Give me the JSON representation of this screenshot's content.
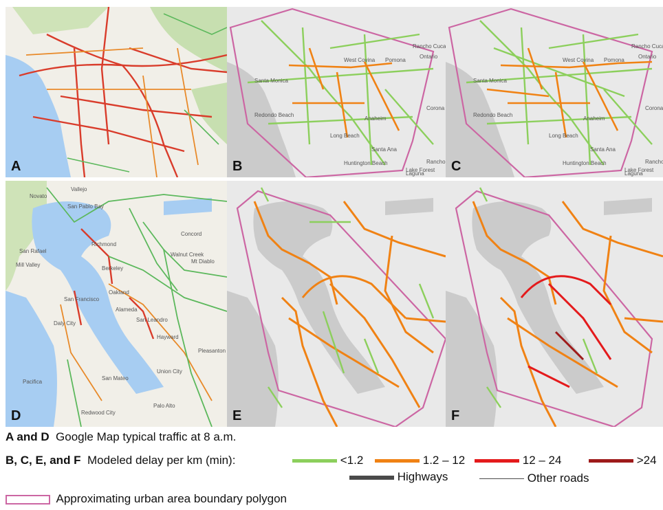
{
  "panels": {
    "A": {
      "label": "A"
    },
    "B": {
      "label": "B"
    },
    "C": {
      "label": "C"
    },
    "D": {
      "label": "D"
    },
    "E": {
      "label": "E"
    },
    "F": {
      "label": "F"
    }
  },
  "la_place_labels": [
    "Santa Monica",
    "West Covina",
    "Pomona",
    "Ontario",
    "Rancho Cucamonga",
    "Redondo Beach",
    "Long Beach",
    "Anaheim",
    "Santa Ana",
    "Huntington Beach",
    "Corona",
    "Lake Forest",
    "Rancho Santa Margarita",
    "Laguna"
  ],
  "sf_place_labels": [
    "Vallejo",
    "Novato",
    "San Pablo Bay",
    "San Rafael",
    "Richmond",
    "Mill Valley",
    "Berkeley",
    "Concord",
    "Walnut Creek",
    "Mt Diablo",
    "Oakland",
    "San Francisco",
    "Alameda",
    "San Leandro",
    "Daly City",
    "Hayward",
    "Pleasanton",
    "Union City",
    "San Mateo",
    "Pacifica",
    "Redwood City",
    "Palo Alto"
  ],
  "legend": {
    "a_d_key": "A and D",
    "a_d_text": "Google Map typical traffic at 8 a.m.",
    "bcef_key": "B, C, E, and F",
    "bcef_text": "Modeled delay per km (min):",
    "delay_classes": [
      {
        "label": "<1.2",
        "color": "#8ccf5c"
      },
      {
        "label": "1.2 – 12",
        "color": "#f08214"
      },
      {
        "label": "12 – 24",
        "color": "#e41a1c"
      },
      {
        "label": ">24",
        "color": "#9e1a1a"
      }
    ],
    "highways": "Highways",
    "other_roads": "Other roads",
    "boundary": "Approximating urban area boundary polygon",
    "boundary_color": "#cc66a3"
  }
}
